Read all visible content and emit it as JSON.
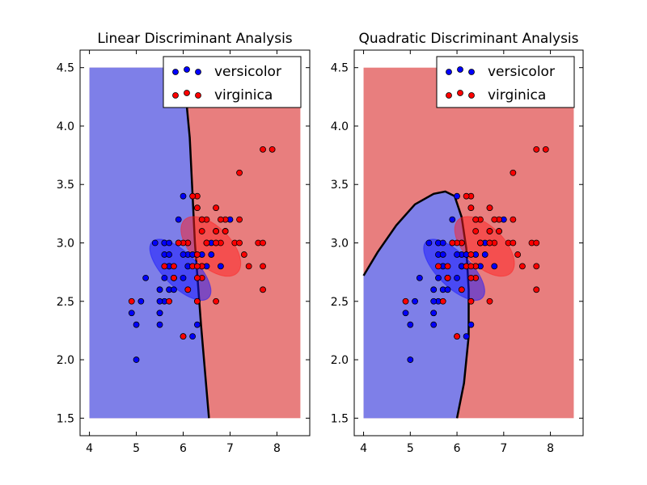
{
  "colors": {
    "class_a_region": "#7e7fe8",
    "class_b_region": "#e87e7e",
    "class_a_points": "#0000ff",
    "class_b_points": "#ff0000",
    "class_a_ellipse": "#1414ff",
    "class_b_ellipse": "#ff2020",
    "boundary": "#000000"
  },
  "chart_data": [
    {
      "type": "scatter",
      "title": "Linear Discriminant Analysis",
      "xlabel": "",
      "ylabel": "",
      "xlim": [
        3.8,
        8.7
      ],
      "ylim": [
        1.35,
        4.65
      ],
      "xticks": [
        4,
        5,
        6,
        7,
        8
      ],
      "yticks": [
        1.5,
        2.0,
        2.5,
        3.0,
        3.5,
        4.0,
        4.5
      ],
      "ytick_labels": [
        "1.5",
        "2.0",
        "2.5",
        "3.0",
        "3.5",
        "4.0",
        "4.5"
      ],
      "region": {
        "xmin": 4.0,
        "xmax": 8.5,
        "ymin": 1.5,
        "ymax": 4.5
      },
      "legend": {
        "placement": "top-right",
        "entries": [
          "versicolor",
          "virginica"
        ]
      },
      "boundary": {
        "kind": "linear",
        "points": [
          [
            6.0,
            4.5
          ],
          [
            6.14,
            3.9
          ],
          [
            6.25,
            3.0
          ],
          [
            6.38,
            2.3
          ],
          [
            6.55,
            1.5
          ]
        ]
      },
      "ellipses": [
        {
          "class": "versicolor",
          "center": [
            5.94,
            2.77
          ],
          "rx": 0.36,
          "ry": 0.34,
          "angle": 45
        },
        {
          "class": "virginica",
          "center": [
            6.59,
            2.97
          ],
          "rx": 0.42,
          "ry": 0.32,
          "angle": 45
        }
      ],
      "series": [
        {
          "name": "versicolor",
          "points": [
            [
              7.0,
              3.2
            ],
            [
              6.4,
              3.2
            ],
            [
              6.9,
              3.1
            ],
            [
              5.5,
              2.3
            ],
            [
              6.5,
              2.8
            ],
            [
              5.7,
              2.8
            ],
            [
              6.3,
              3.3
            ],
            [
              4.9,
              2.4
            ],
            [
              6.6,
              2.9
            ],
            [
              5.2,
              2.7
            ],
            [
              5.0,
              2.0
            ],
            [
              5.9,
              3.0
            ],
            [
              6.0,
              2.2
            ],
            [
              6.1,
              2.9
            ],
            [
              5.6,
              2.9
            ],
            [
              6.7,
              3.1
            ],
            [
              5.6,
              3.0
            ],
            [
              5.8,
              2.7
            ],
            [
              6.2,
              2.2
            ],
            [
              5.6,
              2.5
            ],
            [
              5.9,
              3.2
            ],
            [
              6.1,
              2.8
            ],
            [
              6.3,
              2.5
            ],
            [
              6.1,
              2.8
            ],
            [
              6.4,
              2.9
            ],
            [
              6.6,
              3.0
            ],
            [
              6.8,
              2.8
            ],
            [
              6.7,
              3.0
            ],
            [
              6.0,
              2.9
            ],
            [
              5.7,
              2.6
            ],
            [
              5.5,
              2.4
            ],
            [
              5.5,
              2.4
            ],
            [
              5.8,
              2.7
            ],
            [
              6.0,
              2.7
            ],
            [
              5.4,
              3.0
            ],
            [
              6.0,
              3.4
            ],
            [
              6.7,
              3.1
            ],
            [
              6.3,
              2.3
            ],
            [
              5.6,
              3.0
            ],
            [
              5.5,
              2.5
            ],
            [
              5.5,
              2.6
            ],
            [
              6.1,
              3.0
            ],
            [
              5.8,
              2.6
            ],
            [
              5.0,
              2.3
            ],
            [
              5.6,
              2.7
            ],
            [
              5.7,
              3.0
            ],
            [
              5.7,
              2.9
            ],
            [
              6.2,
              2.9
            ],
            [
              5.1,
              2.5
            ],
            [
              5.7,
              2.8
            ]
          ]
        },
        {
          "name": "virginica",
          "points": [
            [
              6.3,
              3.3
            ],
            [
              5.8,
              2.7
            ],
            [
              7.1,
              3.0
            ],
            [
              6.3,
              2.9
            ],
            [
              6.5,
              3.0
            ],
            [
              7.6,
              3.0
            ],
            [
              4.9,
              2.5
            ],
            [
              7.3,
              2.9
            ],
            [
              6.7,
              2.5
            ],
            [
              7.2,
              3.6
            ],
            [
              6.5,
              3.2
            ],
            [
              6.4,
              2.7
            ],
            [
              6.8,
              3.0
            ],
            [
              5.7,
              2.5
            ],
            [
              5.8,
              2.8
            ],
            [
              6.4,
              3.2
            ],
            [
              6.5,
              3.0
            ],
            [
              7.7,
              3.8
            ],
            [
              7.7,
              2.6
            ],
            [
              6.0,
              2.2
            ],
            [
              6.9,
              3.2
            ],
            [
              5.6,
              2.8
            ],
            [
              7.7,
              2.8
            ],
            [
              6.3,
              2.7
            ],
            [
              6.7,
              3.3
            ],
            [
              7.2,
              3.2
            ],
            [
              6.2,
              2.8
            ],
            [
              6.1,
              3.0
            ],
            [
              6.4,
              2.8
            ],
            [
              7.2,
              3.0
            ],
            [
              7.4,
              2.8
            ],
            [
              7.9,
              3.8
            ],
            [
              6.4,
              2.8
            ],
            [
              6.3,
              2.8
            ],
            [
              6.1,
              2.6
            ],
            [
              7.7,
              3.0
            ],
            [
              6.3,
              3.4
            ],
            [
              6.4,
              3.1
            ],
            [
              6.0,
              3.0
            ],
            [
              6.9,
              3.1
            ],
            [
              6.7,
              3.1
            ],
            [
              6.9,
              3.1
            ],
            [
              5.8,
              2.7
            ],
            [
              6.8,
              3.2
            ],
            [
              6.7,
              3.3
            ],
            [
              6.7,
              3.0
            ],
            [
              6.3,
              2.5
            ],
            [
              6.5,
              3.0
            ],
            [
              6.2,
              3.4
            ],
            [
              5.9,
              3.0
            ]
          ]
        }
      ]
    },
    {
      "type": "scatter",
      "title": "Quadratic Discriminant Analysis",
      "xlabel": "",
      "ylabel": "",
      "xlim": [
        3.8,
        8.7
      ],
      "ylim": [
        1.35,
        4.65
      ],
      "xticks": [
        4,
        5,
        6,
        7,
        8
      ],
      "yticks": [
        1.5,
        2.0,
        2.5,
        3.0,
        3.5,
        4.0,
        4.5
      ],
      "ytick_labels": [
        "1.5",
        "2.0",
        "2.5",
        "3.0",
        "3.5",
        "4.0",
        "4.5"
      ],
      "region": {
        "xmin": 4.0,
        "xmax": 8.5,
        "ymin": 1.5,
        "ymax": 4.5
      },
      "legend": {
        "placement": "top-right",
        "entries": [
          "versicolor",
          "virginica"
        ]
      },
      "boundary": {
        "kind": "quadratic",
        "points": [
          [
            4.0,
            2.72
          ],
          [
            4.3,
            2.92
          ],
          [
            4.7,
            3.15
          ],
          [
            5.1,
            3.33
          ],
          [
            5.5,
            3.42
          ],
          [
            5.75,
            3.44
          ],
          [
            5.95,
            3.4
          ],
          [
            6.1,
            3.22
          ],
          [
            6.2,
            2.95
          ],
          [
            6.25,
            2.6
          ],
          [
            6.25,
            2.2
          ],
          [
            6.15,
            1.8
          ],
          [
            6.0,
            1.5
          ]
        ]
      },
      "ellipses": [
        {
          "class": "versicolor",
          "center": [
            5.94,
            2.77
          ],
          "rx": 0.36,
          "ry": 0.34,
          "angle": 45
        },
        {
          "class": "virginica",
          "center": [
            6.59,
            2.97
          ],
          "rx": 0.42,
          "ry": 0.32,
          "angle": 45
        }
      ],
      "series": [
        {
          "name": "versicolor",
          "points": [
            [
              7.0,
              3.2
            ],
            [
              6.4,
              3.2
            ],
            [
              6.9,
              3.1
            ],
            [
              5.5,
              2.3
            ],
            [
              6.5,
              2.8
            ],
            [
              5.7,
              2.8
            ],
            [
              6.3,
              3.3
            ],
            [
              4.9,
              2.4
            ],
            [
              6.6,
              2.9
            ],
            [
              5.2,
              2.7
            ],
            [
              5.0,
              2.0
            ],
            [
              5.9,
              3.0
            ],
            [
              6.0,
              2.2
            ],
            [
              6.1,
              2.9
            ],
            [
              5.6,
              2.9
            ],
            [
              6.7,
              3.1
            ],
            [
              5.6,
              3.0
            ],
            [
              5.8,
              2.7
            ],
            [
              6.2,
              2.2
            ],
            [
              5.6,
              2.5
            ],
            [
              5.9,
              3.2
            ],
            [
              6.1,
              2.8
            ],
            [
              6.3,
              2.5
            ],
            [
              6.1,
              2.8
            ],
            [
              6.4,
              2.9
            ],
            [
              6.6,
              3.0
            ],
            [
              6.8,
              2.8
            ],
            [
              6.7,
              3.0
            ],
            [
              6.0,
              2.9
            ],
            [
              5.7,
              2.6
            ],
            [
              5.5,
              2.4
            ],
            [
              5.5,
              2.4
            ],
            [
              5.8,
              2.7
            ],
            [
              6.0,
              2.7
            ],
            [
              5.4,
              3.0
            ],
            [
              6.0,
              3.4
            ],
            [
              6.7,
              3.1
            ],
            [
              6.3,
              2.3
            ],
            [
              5.6,
              3.0
            ],
            [
              5.5,
              2.5
            ],
            [
              5.5,
              2.6
            ],
            [
              6.1,
              3.0
            ],
            [
              5.8,
              2.6
            ],
            [
              5.0,
              2.3
            ],
            [
              5.6,
              2.7
            ],
            [
              5.7,
              3.0
            ],
            [
              5.7,
              2.9
            ],
            [
              6.2,
              2.9
            ],
            [
              5.1,
              2.5
            ],
            [
              5.7,
              2.8
            ]
          ]
        },
        {
          "name": "virginica",
          "points": [
            [
              6.3,
              3.3
            ],
            [
              5.8,
              2.7
            ],
            [
              7.1,
              3.0
            ],
            [
              6.3,
              2.9
            ],
            [
              6.5,
              3.0
            ],
            [
              7.6,
              3.0
            ],
            [
              4.9,
              2.5
            ],
            [
              7.3,
              2.9
            ],
            [
              6.7,
              2.5
            ],
            [
              7.2,
              3.6
            ],
            [
              6.5,
              3.2
            ],
            [
              6.4,
              2.7
            ],
            [
              6.8,
              3.0
            ],
            [
              5.7,
              2.5
            ],
            [
              5.8,
              2.8
            ],
            [
              6.4,
              3.2
            ],
            [
              6.5,
              3.0
            ],
            [
              7.7,
              3.8
            ],
            [
              7.7,
              2.6
            ],
            [
              6.0,
              2.2
            ],
            [
              6.9,
              3.2
            ],
            [
              5.6,
              2.8
            ],
            [
              7.7,
              2.8
            ],
            [
              6.3,
              2.7
            ],
            [
              6.7,
              3.3
            ],
            [
              7.2,
              3.2
            ],
            [
              6.2,
              2.8
            ],
            [
              6.1,
              3.0
            ],
            [
              6.4,
              2.8
            ],
            [
              7.2,
              3.0
            ],
            [
              7.4,
              2.8
            ],
            [
              7.9,
              3.8
            ],
            [
              6.4,
              2.8
            ],
            [
              6.3,
              2.8
            ],
            [
              6.1,
              2.6
            ],
            [
              7.7,
              3.0
            ],
            [
              6.3,
              3.4
            ],
            [
              6.4,
              3.1
            ],
            [
              6.0,
              3.0
            ],
            [
              6.9,
              3.1
            ],
            [
              6.7,
              3.1
            ],
            [
              6.9,
              3.1
            ],
            [
              5.8,
              2.7
            ],
            [
              6.8,
              3.2
            ],
            [
              6.7,
              3.3
            ],
            [
              6.7,
              3.0
            ],
            [
              6.3,
              2.5
            ],
            [
              6.5,
              3.0
            ],
            [
              6.2,
              3.4
            ],
            [
              5.9,
              3.0
            ]
          ]
        }
      ]
    }
  ]
}
